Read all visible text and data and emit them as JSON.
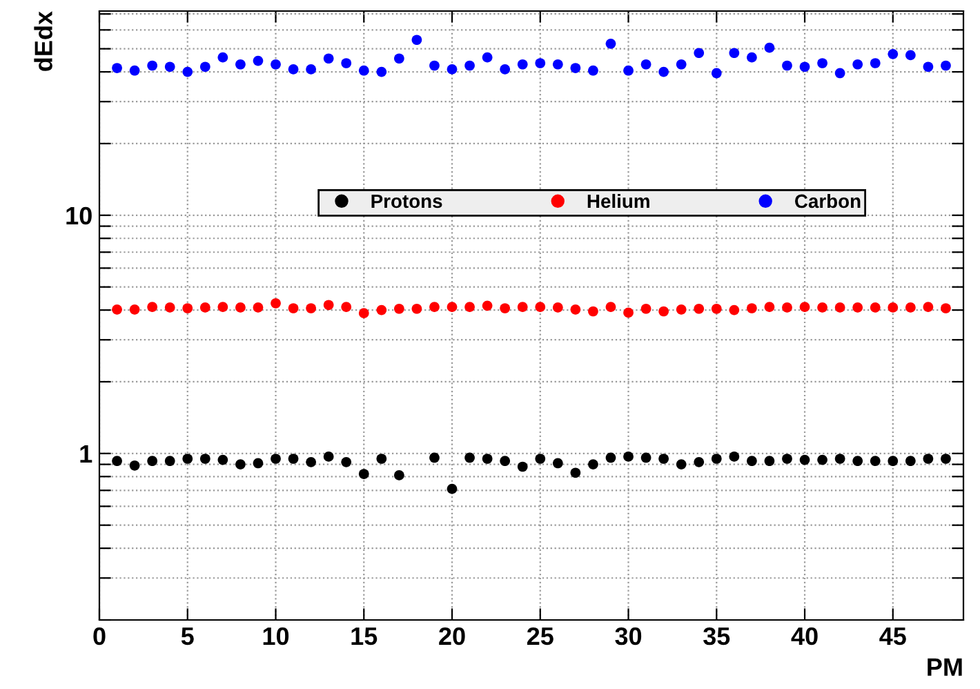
{
  "chart_data": {
    "type": "scatter",
    "xlabel": "PM",
    "ylabel": "dEdx",
    "log": "y",
    "grid": true,
    "legend": "top",
    "marker": "circle",
    "x": [
      1,
      2,
      3,
      4,
      5,
      6,
      7,
      8,
      9,
      10,
      11,
      12,
      13,
      14,
      15,
      16,
      17,
      18,
      19,
      20,
      21,
      22,
      23,
      24,
      25,
      26,
      27,
      28,
      29,
      30,
      31,
      32,
      33,
      34,
      35,
      36,
      37,
      38,
      39,
      40,
      41,
      42,
      43,
      44,
      45,
      46,
      47,
      48
    ],
    "xlim": [
      0,
      49
    ],
    "xticks": [
      0,
      5,
      10,
      15,
      20,
      25,
      30,
      35,
      40,
      45
    ],
    "ylim": [
      0.2,
      72
    ],
    "yticks": [
      {
        "value": 0.2,
        "label": null
      },
      {
        "value": 0.3,
        "label": null
      },
      {
        "value": 0.4,
        "label": null
      },
      {
        "value": 0.5,
        "label": null
      },
      {
        "value": 0.6,
        "label": null
      },
      {
        "value": 0.7,
        "label": null
      },
      {
        "value": 0.8,
        "label": null
      },
      {
        "value": 0.9,
        "label": null
      },
      1,
      {
        "value": 2,
        "label": null
      },
      {
        "value": 3,
        "label": null
      },
      {
        "value": 4,
        "label": null
      },
      {
        "value": 5,
        "label": null
      },
      {
        "value": 6,
        "label": null
      },
      {
        "value": 7,
        "label": null
      },
      {
        "value": 8,
        "label": null
      },
      {
        "value": 9,
        "label": null
      },
      10,
      {
        "value": 20,
        "label": null
      },
      {
        "value": 30,
        "label": null
      },
      {
        "value": 40,
        "label": null
      },
      {
        "value": 50,
        "label": null
      },
      {
        "value": 60,
        "label": null
      },
      {
        "value": 70,
        "label": null
      }
    ],
    "series": [
      {
        "name": "Protons",
        "color": "#000000",
        "values": [
          0.93,
          0.89,
          0.93,
          0.93,
          0.95,
          0.95,
          0.94,
          0.9,
          0.91,
          0.95,
          0.95,
          0.92,
          0.97,
          0.92,
          0.82,
          0.95,
          0.81,
          null,
          0.96,
          0.71,
          0.96,
          0.95,
          0.93,
          0.88,
          0.95,
          0.91,
          0.83,
          0.9,
          0.96,
          0.97,
          0.96,
          0.95,
          0.9,
          0.92,
          0.95,
          0.97,
          0.93,
          0.93,
          0.95,
          0.94,
          0.94,
          0.95,
          0.93,
          0.93,
          0.93,
          0.93,
          0.95,
          0.95
        ]
      },
      {
        "name": "Helium",
        "color": "#ff0000",
        "values": [
          4.02,
          4.02,
          4.12,
          4.1,
          4.07,
          4.1,
          4.12,
          4.1,
          4.1,
          4.27,
          4.07,
          4.07,
          4.2,
          4.12,
          3.88,
          4.0,
          4.05,
          4.05,
          4.12,
          4.12,
          4.12,
          4.17,
          4.07,
          4.12,
          4.12,
          4.1,
          4.02,
          3.95,
          4.12,
          3.9,
          4.05,
          3.95,
          4.02,
          4.05,
          4.05,
          4.0,
          4.07,
          4.12,
          4.1,
          4.12,
          4.1,
          4.1,
          4.1,
          4.1,
          4.1,
          4.1,
          4.12,
          4.07
        ]
      },
      {
        "name": "Carbon",
        "color": "#0000ff",
        "values": [
          41.5,
          40.5,
          42.5,
          42.0,
          40.0,
          42.0,
          46.0,
          43.0,
          44.5,
          43.0,
          41.0,
          41.0,
          45.5,
          43.5,
          40.5,
          40.0,
          45.5,
          54.5,
          42.5,
          41.0,
          42.5,
          46.0,
          41.0,
          43.0,
          43.5,
          43.0,
          41.5,
          40.5,
          52.5,
          40.5,
          43.0,
          40.0,
          43.0,
          48.0,
          39.5,
          48.0,
          46.0,
          50.5,
          42.5,
          42.0,
          43.5,
          39.5,
          43.0,
          43.5,
          47.5,
          47.0,
          42.0,
          42.5
        ]
      }
    ]
  }
}
